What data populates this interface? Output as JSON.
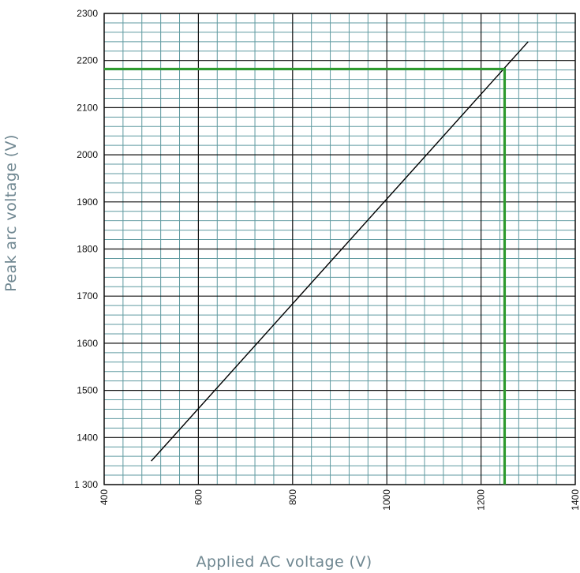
{
  "chart_data": {
    "type": "line",
    "title": "",
    "xlabel": "Applied AC voltage (V)",
    "ylabel": "Peak arc voltage (V)",
    "xlim": [
      400,
      1400
    ],
    "ylim": [
      1300,
      2300
    ],
    "x_ticks": [
      "400",
      "600",
      "800",
      "1000",
      "1200",
      "1400"
    ],
    "y_ticks": [
      "1 300",
      "1400",
      "1500",
      "1600",
      "1700",
      "1800",
      "1900",
      "2000",
      "2100",
      "2200",
      "2300"
    ],
    "grid": true,
    "series": [
      {
        "x": [
          500,
          1300
        ],
        "y": [
          1350,
          2240
        ]
      }
    ],
    "reference_lines": [
      {
        "orientation": "vertical",
        "x": 1250,
        "y_range": [
          1300,
          2182
        ],
        "color": "#2e9a2e"
      },
      {
        "orientation": "horizontal",
        "y": 2182,
        "x_range": [
          400,
          1250
        ],
        "color": "#2e9a2e"
      }
    ],
    "colors": {
      "minor_grid": "#5f9aa0",
      "major_grid": "#111111",
      "line": "#000000",
      "axis_title": "#6f8791"
    }
  }
}
